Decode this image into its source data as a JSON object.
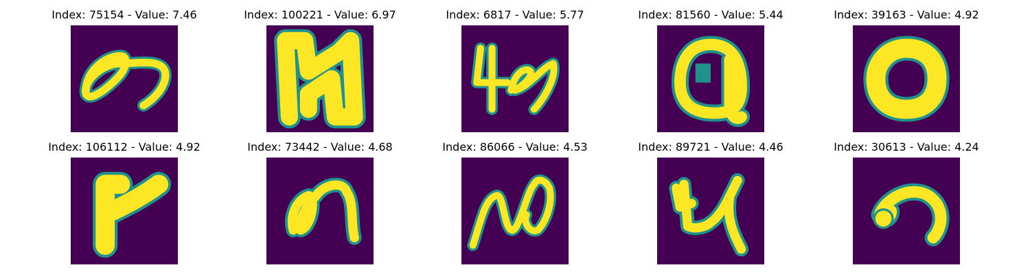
{
  "colors": {
    "background": "#440154",
    "stroke_edge": "#21918c",
    "stroke_core": "#fde725"
  },
  "panels": [
    {
      "title": "Index: 75154 - Value: 7.46",
      "index": 75154,
      "value": 7.46,
      "glyph": "swirl-loop"
    },
    {
      "title": "Index: 100221 - Value: 6.97",
      "index": 100221,
      "value": 6.97,
      "glyph": "bold-n"
    },
    {
      "title": "Index: 6817 - Value: 5.77",
      "index": 6817,
      "value": 5.77,
      "glyph": "squiggle-4"
    },
    {
      "title": "Index: 81560 - Value: 5.44",
      "index": 81560,
      "value": 5.44,
      "glyph": "q-like"
    },
    {
      "title": "Index: 39163 - Value: 4.92",
      "index": 39163,
      "value": 4.92,
      "glyph": "thick-o"
    },
    {
      "title": "Index: 106112 - Value: 4.92",
      "index": 106112,
      "value": 4.92,
      "glyph": "bold-r"
    },
    {
      "title": "Index: 73442 - Value: 4.68",
      "index": 73442,
      "value": 4.68,
      "glyph": "loop-n"
    },
    {
      "title": "Index: 86066 - Value: 4.53",
      "index": 86066,
      "value": 4.53,
      "glyph": "wave-n"
    },
    {
      "title": "Index: 89721 - Value: 4.46",
      "index": 89721,
      "value": 4.46,
      "glyph": "y-like"
    },
    {
      "title": "Index: 30613 - Value: 4.24",
      "index": 30613,
      "value": 4.24,
      "glyph": "hook"
    }
  ]
}
